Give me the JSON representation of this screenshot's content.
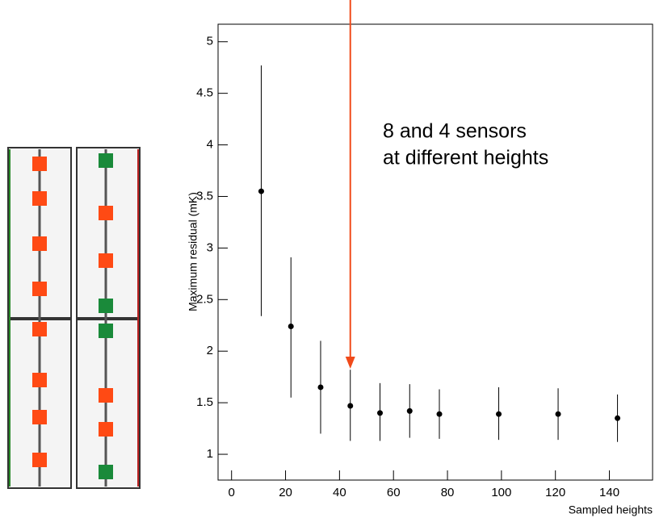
{
  "chart_data": {
    "type": "errorbar",
    "ylabel": "Maximum residual (mK)",
    "xlabel": "Sampled heights",
    "annotation": [
      "8 and 4 sensors",
      "at different heights"
    ],
    "x": [
      11,
      22,
      33,
      44,
      55,
      66,
      77,
      99,
      121,
      143
    ],
    "values": [
      3.55,
      2.24,
      1.65,
      1.47,
      1.4,
      1.42,
      1.39,
      1.39,
      1.39,
      1.35
    ],
    "lower": [
      2.34,
      1.55,
      1.2,
      1.13,
      1.13,
      1.16,
      1.15,
      1.14,
      1.14,
      1.12
    ],
    "upper": [
      4.77,
      2.91,
      2.1,
      1.82,
      1.69,
      1.68,
      1.63,
      1.65,
      1.64,
      1.58
    ],
    "color": "#000000",
    "xlim": [
      -5,
      156
    ],
    "ylim": [
      0.75,
      5.17
    ],
    "xticks": [
      0,
      20,
      40,
      60,
      80,
      100,
      120,
      140
    ],
    "yticks": [
      1,
      1.5,
      2,
      2.5,
      3,
      3.5,
      4,
      4.5,
      5
    ],
    "arrow_x": 44
  }
}
